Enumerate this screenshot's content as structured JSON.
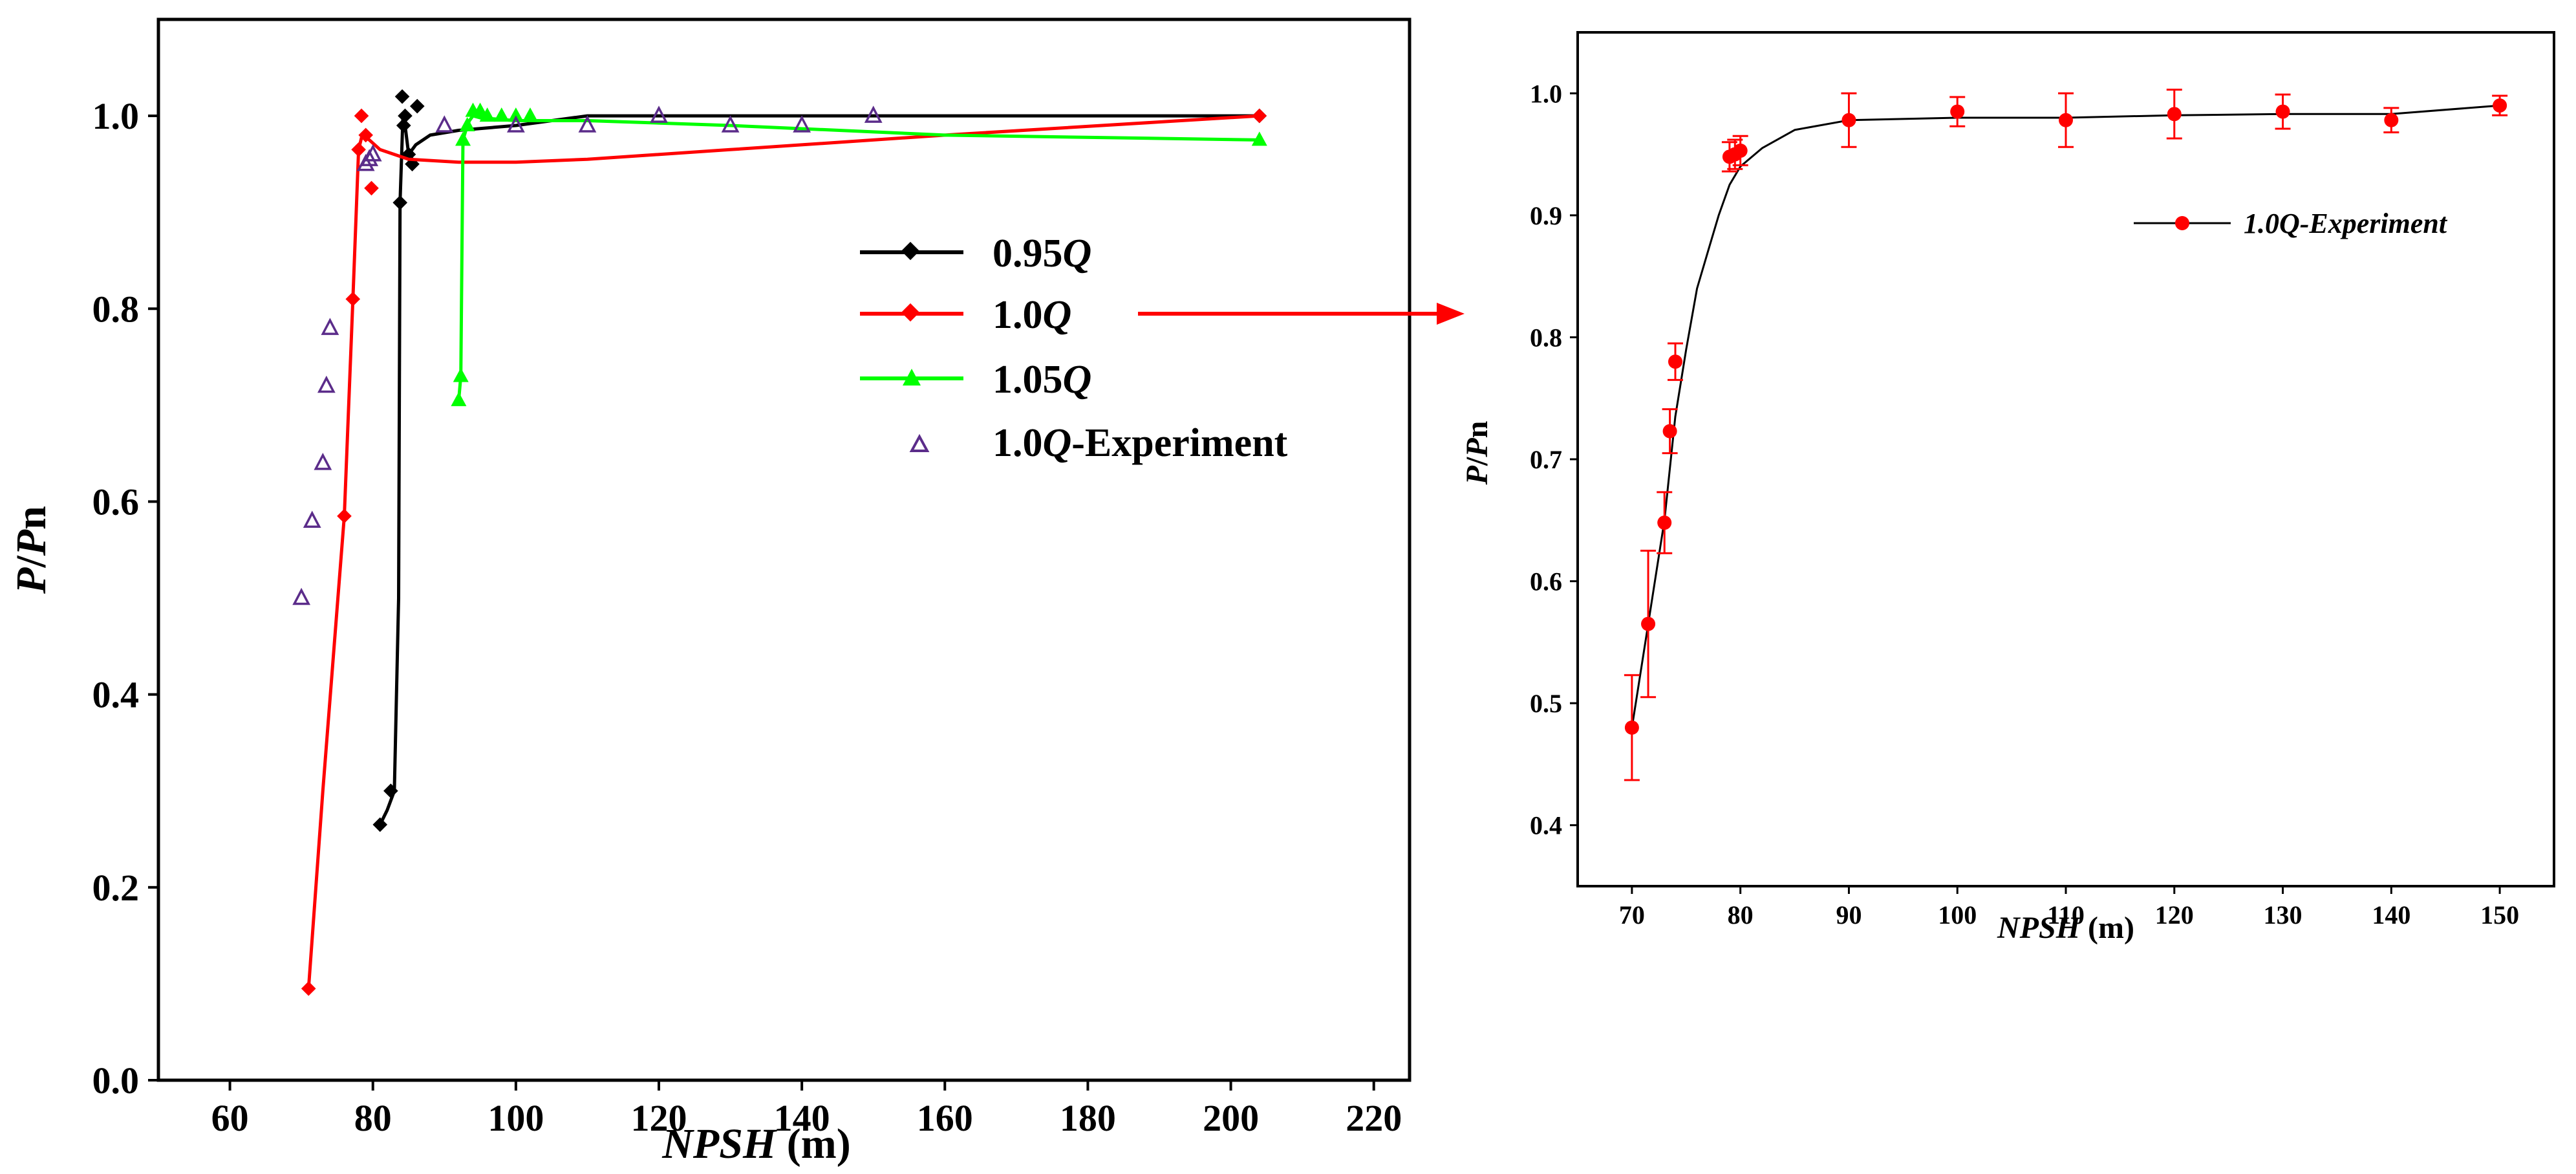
{
  "chart_data": [
    {
      "type": "line",
      "title": "",
      "xlabel": {
        "italic": "NPSH",
        "plain": " (m)"
      },
      "ylabel": {
        "p1": "P",
        "p2": "/",
        "p3": "P",
        "p4": "n"
      },
      "xlim": [
        50,
        225
      ],
      "ylim": [
        0,
        1.1
      ],
      "xticks": [
        60,
        80,
        100,
        120,
        140,
        160,
        180,
        200,
        220
      ],
      "yticks": [
        0.0,
        0.2,
        0.4,
        0.6,
        0.8,
        1.0
      ],
      "ytick_labels": [
        "0.0",
        "0.2",
        "0.4",
        "0.6",
        "0.8",
        "1.0"
      ],
      "legend_position": "center-right",
      "series": [
        {
          "name": "0.95Q",
          "label_num": "0.95",
          "label_q": "Q",
          "label_suffix": "",
          "color": "#000000",
          "marker": "diamond",
          "line": true,
          "x": [
            81,
            82,
            83,
            83.6,
            83.8,
            84.2,
            84.5,
            85,
            86,
            88,
            92,
            100,
            110,
            120,
            150,
            204
          ],
          "y": [
            0.265,
            0.28,
            0.3,
            0.5,
            0.91,
            1.0,
            0.99,
            0.96,
            0.97,
            0.98,
            0.985,
            0.99,
            1.0,
            1.0,
            1.0,
            1.0
          ],
          "markers_x": [
            81,
            82.5,
            83.8,
            84.1,
            84.3,
            84.5,
            85,
            85.5,
            86.2,
            204
          ],
          "markers_y": [
            0.265,
            0.3,
            0.91,
            1.02,
            0.99,
            1.0,
            0.96,
            0.95,
            1.01,
            1.0
          ]
        },
        {
          "name": "1.0Q",
          "label_num": "1.0",
          "label_q": "Q",
          "label_suffix": "",
          "color": "#ff0000",
          "marker": "diamond",
          "line": true,
          "x": [
            71,
            73,
            76,
            77.2,
            78,
            78.5,
            79.5,
            81,
            85,
            92,
            100,
            110,
            130,
            160,
            204
          ],
          "y": [
            0.095,
            0.3,
            0.585,
            0.81,
            0.965,
            0.98,
            0.975,
            0.965,
            0.955,
            0.952,
            0.952,
            0.955,
            0.965,
            0.98,
            1.0
          ],
          "markers_x": [
            71,
            76,
            77.2,
            78,
            78.4,
            79,
            79.8,
            204
          ],
          "markers_y": [
            0.095,
            0.585,
            0.81,
            0.965,
            1.0,
            0.98,
            0.925,
            1.0
          ]
        },
        {
          "name": "1.05Q",
          "label_num": "1.05",
          "label_q": "Q",
          "label_suffix": "",
          "color": "#00ff00",
          "marker": "triangle",
          "line": true,
          "x": [
            92,
            92.3,
            92.6,
            93,
            93.5,
            94,
            95,
            100,
            110,
            130,
            160,
            204
          ],
          "y": [
            0.705,
            0.73,
            0.975,
            0.985,
            0.995,
            1.0,
            0.998,
            0.995,
            0.995,
            0.99,
            0.98,
            0.975
          ],
          "markers_x": [
            92,
            92.3,
            92.6,
            93.2,
            94,
            95,
            96,
            98,
            100,
            102,
            204
          ],
          "markers_y": [
            0.705,
            0.73,
            0.975,
            0.99,
            1.005,
            1.005,
            1.0,
            1.0,
            1.0,
            1.0,
            0.975
          ]
        },
        {
          "name": "1.0Q-Experiment",
          "label_num": "1.0",
          "label_q": "Q",
          "label_suffix": "-Experiment",
          "color": "#5b2c8a",
          "marker": "open-triangle",
          "line": false,
          "x": [
            70,
            71.5,
            73,
            73.5,
            74,
            79,
            79.5,
            80,
            90,
            100,
            110,
            120,
            130,
            140,
            150
          ],
          "y": [
            0.5,
            0.58,
            0.64,
            0.72,
            0.78,
            0.95,
            0.955,
            0.96,
            0.99,
            0.99,
            0.99,
            1.0,
            0.99,
            0.99,
            1.0
          ],
          "markers_x": [
            70,
            71.5,
            73,
            73.5,
            74,
            79,
            79.5,
            80,
            90,
            100,
            110,
            120,
            130,
            140,
            150
          ],
          "markers_y": [
            0.5,
            0.58,
            0.64,
            0.72,
            0.78,
            0.95,
            0.955,
            0.96,
            0.99,
            0.99,
            0.99,
            1.0,
            0.99,
            0.99,
            1.0
          ]
        }
      ]
    },
    {
      "type": "scatter",
      "title": "",
      "xlabel": {
        "italic": "NPSH",
        "plain": " (m)"
      },
      "ylabel": {
        "p1": "P",
        "p2": "/",
        "p3": "P",
        "p4": "n"
      },
      "xlim": [
        65,
        155
      ],
      "ylim": [
        0.35,
        1.05
      ],
      "xticks": [
        70,
        80,
        90,
        100,
        110,
        120,
        130,
        140,
        150
      ],
      "yticks": [
        0.4,
        0.5,
        0.6,
        0.7,
        0.8,
        0.9,
        1.0
      ],
      "ytick_labels": [
        "0.4",
        "0.5",
        "0.6",
        "0.7",
        "0.8",
        "0.9",
        "1.0"
      ],
      "legend_position": "top-right",
      "series": [
        {
          "name": "1.0Q-Experiment",
          "color": "#ff0000",
          "marker": "circle",
          "fit_line_color": "#000000",
          "x": [
            70,
            71.5,
            73,
            73.5,
            74,
            79,
            79.5,
            80,
            90,
            100,
            110,
            120,
            130,
            140,
            150
          ],
          "y": [
            0.48,
            0.565,
            0.648,
            0.723,
            0.78,
            0.948,
            0.95,
            0.953,
            0.978,
            0.985,
            0.978,
            0.983,
            0.985,
            0.978,
            0.99
          ],
          "yerr": [
            0.043,
            0.06,
            0.025,
            0.018,
            0.015,
            0.012,
            0.012,
            0.012,
            0.022,
            0.012,
            0.022,
            0.02,
            0.014,
            0.01,
            0.008
          ],
          "fit_x": [
            70,
            71.5,
            73,
            74,
            75,
            76,
            77,
            78,
            79,
            80,
            82,
            85,
            90,
            100,
            110,
            120,
            130,
            140,
            150
          ],
          "fit_y": [
            0.48,
            0.565,
            0.65,
            0.735,
            0.79,
            0.84,
            0.87,
            0.9,
            0.925,
            0.94,
            0.955,
            0.97,
            0.978,
            0.98,
            0.98,
            0.982,
            0.983,
            0.983,
            0.99
          ]
        }
      ]
    }
  ],
  "connector_arrow": {
    "color": "#ff0000",
    "from": "1.0Q legend entry",
    "to": "right panel"
  }
}
